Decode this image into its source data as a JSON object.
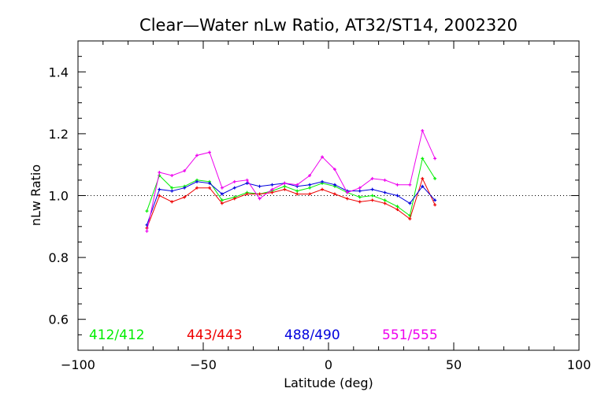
{
  "chart_data": {
    "type": "line",
    "title": "Clear—Water nLw Ratio, AT32/ST14, 2002320",
    "xlabel": "Latitude (deg)",
    "ylabel": "nLw Ratio",
    "xlim": [
      -100,
      100
    ],
    "ylim": [
      0.5,
      1.5
    ],
    "x_ticks": [
      -100,
      -50,
      0,
      50,
      100
    ],
    "x_tick_labels": [
      "−100",
      "−50",
      "0",
      "50",
      "100"
    ],
    "y_ticks": [
      0.6,
      0.8,
      1.0,
      1.2,
      1.4
    ],
    "y_tick_labels": [
      "0.6",
      "0.8",
      "1.0",
      "1.2",
      "1.4"
    ],
    "reference_line": 1.0,
    "grid": false,
    "legend_position": "bottom",
    "x": [
      -72.5,
      -67.5,
      -62.5,
      -57.5,
      -52.5,
      -47.5,
      -42.5,
      -37.5,
      -32.5,
      -27.5,
      -22.5,
      -17.5,
      -12.5,
      -7.5,
      -2.5,
      2.5,
      7.5,
      12.5,
      17.5,
      22.5,
      27.5,
      32.5,
      37.5,
      42.5
    ],
    "series": [
      {
        "name": "412/412",
        "color": "#00ee00",
        "values": [
          0.95,
          1.065,
          1.025,
          1.03,
          1.05,
          1.045,
          0.985,
          0.995,
          1.01,
          1.005,
          1.015,
          1.03,
          1.015,
          1.025,
          1.04,
          1.03,
          1.01,
          0.995,
          1.0,
          0.985,
          0.965,
          0.935,
          1.12,
          1.055
        ]
      },
      {
        "name": "443/443",
        "color": "#ee0000",
        "values": [
          0.895,
          1.0,
          0.98,
          0.995,
          1.025,
          1.025,
          0.975,
          0.99,
          1.005,
          1.005,
          1.01,
          1.02,
          1.005,
          1.005,
          1.02,
          1.005,
          0.99,
          0.98,
          0.985,
          0.975,
          0.955,
          0.925,
          1.055,
          0.97
        ]
      },
      {
        "name": "488/490",
        "color": "#0000dd",
        "values": [
          0.905,
          1.02,
          1.015,
          1.025,
          1.045,
          1.04,
          1.005,
          1.025,
          1.04,
          1.03,
          1.035,
          1.04,
          1.03,
          1.035,
          1.045,
          1.035,
          1.015,
          1.015,
          1.02,
          1.01,
          1.0,
          0.975,
          1.03,
          0.985
        ]
      },
      {
        "name": "551/555",
        "color": "#ee00ee",
        "values": [
          0.885,
          1.075,
          1.065,
          1.08,
          1.13,
          1.14,
          1.025,
          1.045,
          1.05,
          0.99,
          1.02,
          1.04,
          1.035,
          1.065,
          1.125,
          1.085,
          1.01,
          1.025,
          1.055,
          1.05,
          1.035,
          1.035,
          1.21,
          1.12
        ]
      }
    ]
  }
}
